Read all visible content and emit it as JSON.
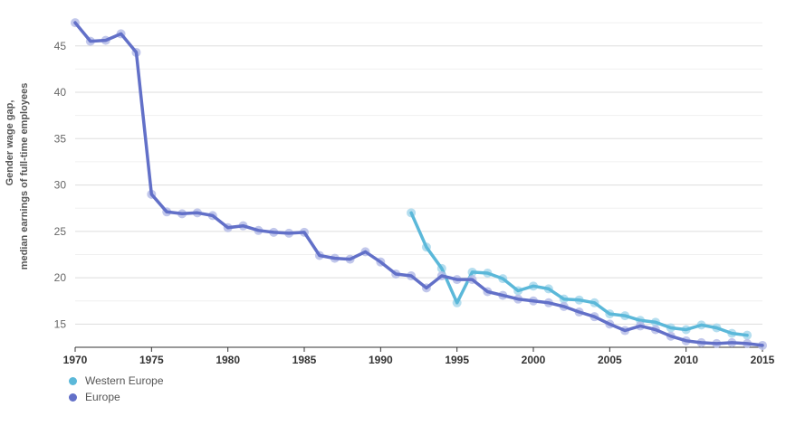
{
  "chart_data": {
    "type": "line",
    "title": "",
    "ylabel_line1": "Gender wage gap,",
    "ylabel_line2": "median earnings of full-time employees",
    "xlabel": "",
    "xlim": [
      1970,
      2015
    ],
    "ylim": [
      12.5,
      48
    ],
    "yticks": [
      15,
      20,
      25,
      30,
      35,
      40,
      45
    ],
    "xticks": [
      1970,
      1975,
      1980,
      1985,
      1990,
      1995,
      2000,
      2005,
      2010,
      2015
    ],
    "grid": true,
    "legend_position": "bottom-left",
    "series": [
      {
        "name": "Western Europe",
        "color": "#5bb8d9",
        "marker_color": "#a8d8ec",
        "x": [
          1992,
          1993,
          1994,
          1995,
          1996,
          1997,
          1998,
          1999,
          2000,
          2001,
          2002,
          2003,
          2004,
          2005,
          2006,
          2007,
          2008,
          2009,
          2010,
          2011,
          2012,
          2013,
          2014
        ],
        "y": [
          27.0,
          23.3,
          21.0,
          17.3,
          20.6,
          20.5,
          19.9,
          18.6,
          19.1,
          18.8,
          17.7,
          17.6,
          17.3,
          16.1,
          15.9,
          15.4,
          15.2,
          14.6,
          14.4,
          14.9,
          14.6,
          14.0,
          13.8
        ]
      },
      {
        "name": "Europe",
        "color": "#6270c8",
        "marker_color": "#b6bde8",
        "x": [
          1970,
          1971,
          1972,
          1973,
          1974,
          1975,
          1976,
          1977,
          1978,
          1979,
          1980,
          1981,
          1982,
          1983,
          1984,
          1985,
          1986,
          1987,
          1988,
          1989,
          1990,
          1991,
          1992,
          1993,
          1994,
          1995,
          1996,
          1997,
          1998,
          1999,
          2000,
          2001,
          2002,
          2003,
          2004,
          2005,
          2006,
          2007,
          2008,
          2009,
          2010,
          2011,
          2012,
          2013,
          2014,
          2015
        ],
        "y": [
          47.5,
          45.5,
          45.6,
          46.3,
          44.3,
          29.0,
          27.1,
          26.9,
          27.0,
          26.7,
          25.4,
          25.6,
          25.1,
          24.9,
          24.8,
          24.9,
          22.4,
          22.1,
          22.0,
          22.8,
          21.7,
          20.4,
          20.2,
          18.9,
          20.2,
          19.8,
          19.8,
          18.5,
          18.1,
          17.7,
          17.5,
          17.3,
          16.9,
          16.3,
          15.8,
          15.0,
          14.3,
          14.8,
          14.4,
          13.7,
          13.2,
          13.0,
          12.9,
          13.0,
          12.9,
          12.7
        ]
      }
    ]
  }
}
